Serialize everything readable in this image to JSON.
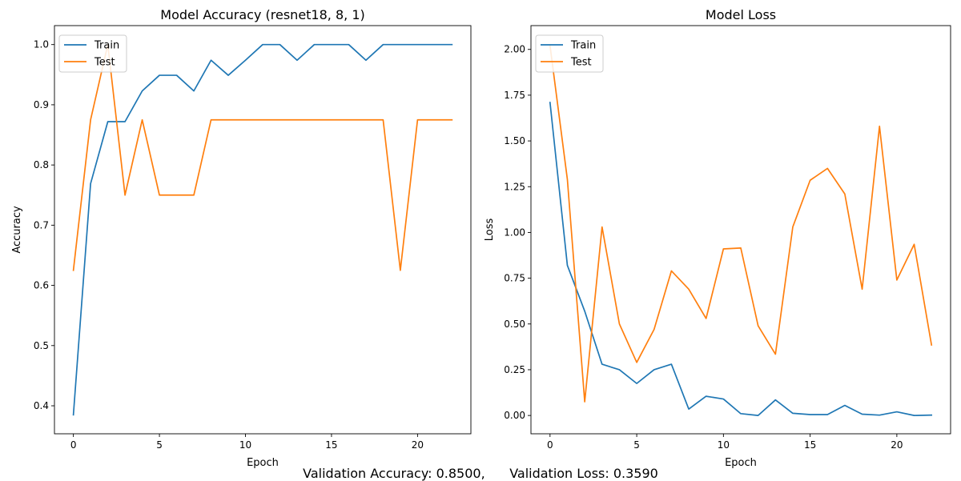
{
  "chart_data": [
    {
      "type": "line",
      "title": "Model Accuracy (resnet18, 8, 1)",
      "xlabel": "Epoch",
      "ylabel": "Accuracy",
      "xlim": [
        -1.1,
        23.1
      ],
      "ylim": [
        0.3535,
        1.0315
      ],
      "xticks": [
        0,
        5,
        10,
        15,
        20
      ],
      "yticks": [
        0.4,
        0.5,
        0.6,
        0.7,
        0.8,
        0.9,
        1.0
      ],
      "ytick_labels": [
        "0.4",
        "0.5",
        "0.6",
        "0.7",
        "0.8",
        "0.9",
        "1.0"
      ],
      "grid": false,
      "legend": "upper-left",
      "x": [
        0,
        1,
        2,
        3,
        4,
        5,
        6,
        7,
        8,
        9,
        10,
        11,
        12,
        13,
        14,
        15,
        16,
        17,
        18,
        19,
        20,
        21,
        22
      ],
      "series": [
        {
          "name": "Train",
          "color": "#1f77b4",
          "values": [
            0.385,
            0.769,
            0.872,
            0.872,
            0.923,
            0.949,
            0.949,
            0.923,
            0.974,
            0.949,
            0.974,
            1.0,
            1.0,
            0.974,
            1.0,
            1.0,
            1.0,
            0.974,
            1.0,
            1.0,
            1.0,
            1.0,
            1.0
          ]
        },
        {
          "name": "Test",
          "color": "#ff7f0e",
          "values": [
            0.625,
            0.875,
            1.0,
            0.75,
            0.875,
            0.75,
            0.75,
            0.75,
            0.875,
            0.875,
            0.875,
            0.875,
            0.875,
            0.875,
            0.875,
            0.875,
            0.875,
            0.875,
            0.875,
            0.625,
            0.875,
            0.875,
            0.875
          ]
        }
      ]
    },
    {
      "type": "line",
      "title": "Model Loss",
      "xlabel": "Epoch",
      "ylabel": "Loss",
      "xlim": [
        -1.1,
        23.1
      ],
      "ylim": [
        -0.1,
        2.13
      ],
      "xticks": [
        0,
        5,
        10,
        15,
        20
      ],
      "yticks": [
        0,
        0.25,
        0.5,
        0.75,
        1.0,
        1.25,
        1.5,
        1.75,
        2.0
      ],
      "ytick_labels": [
        "0.00",
        "0.25",
        "0.50",
        "0.75",
        "1.00",
        "1.25",
        "1.50",
        "1.75",
        "2.00"
      ],
      "grid": false,
      "legend": "upper-left",
      "x": [
        0,
        1,
        2,
        3,
        4,
        5,
        6,
        7,
        8,
        9,
        10,
        11,
        12,
        13,
        14,
        15,
        16,
        17,
        18,
        19,
        20,
        21,
        22
      ],
      "series": [
        {
          "name": "Train",
          "color": "#1f77b4",
          "values": [
            1.71,
            0.82,
            0.57,
            0.28,
            0.25,
            0.175,
            0.25,
            0.28,
            0.035,
            0.105,
            0.09,
            0.01,
            0.0,
            0.085,
            0.012,
            0.005,
            0.005,
            0.055,
            0.007,
            0.002,
            0.02,
            0.0,
            0.002
          ]
        },
        {
          "name": "Test",
          "color": "#ff7f0e",
          "values": [
            2.02,
            1.29,
            0.075,
            1.03,
            0.5,
            0.29,
            0.47,
            0.79,
            0.69,
            0.53,
            0.91,
            0.915,
            0.49,
            0.335,
            1.03,
            1.285,
            1.35,
            1.21,
            0.69,
            1.58,
            0.74,
            0.935,
            0.385
          ]
        }
      ]
    }
  ],
  "footer": {
    "accuracy_text": "Validation Accuracy: 0.8500,",
    "loss_text": "Validation Loss: 0.3590"
  }
}
